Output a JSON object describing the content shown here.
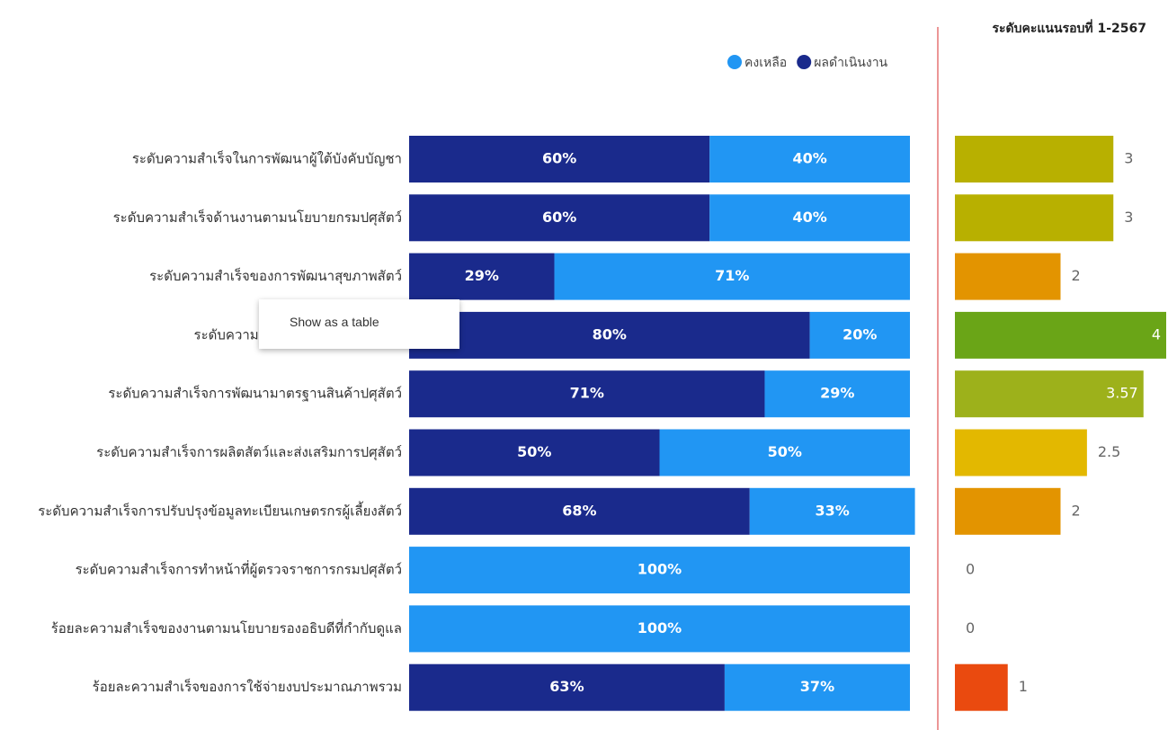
{
  "chart_data": [
    {
      "type": "stacked-bar-horizontal",
      "categories": [
        "ระดับความสำเร็จในการพัฒนาผู้ใต้บังคับบัญชา",
        "ระดับความสำเร็จด้านงานตามนโยบายกรมปศุสัตว์",
        "ระดับความสำเร็จของการพัฒนาสุขภาพสัตว์",
        "ระดับความสำเร็จการสร้างการรับรู้ค",
        "ระดับความสำเร็จการพัฒนามาตรฐานสินค้าปศุสัตว์",
        "ระดับความสำเร็จการผลิตสัตว์และส่งเสริมการปศุสัตว์",
        "ระดับความสำเร็จการปรับปรุงข้อมูลทะเบียนเกษตรกรผู้เลี้ยงสัตว์",
        "ระดับความสำเร็จการทำหน้าที่ผู้ตรวจราชการกรมปศุสัตว์",
        "ร้อยละความสำเร็จของงานตามนโยบายรองอธิบดีที่กำกับดูแล",
        "ร้อยละความสำเร็จของการใช้จ่ายงบประมาณภาพรวม"
      ],
      "series": [
        {
          "name": "คงเหลือ",
          "color": "#2196f3",
          "values": [
            40,
            40,
            71,
            20,
            29,
            50,
            33,
            100,
            100,
            37
          ],
          "value_labels": [
            "40%",
            "40%",
            "71%",
            "20%",
            "29%",
            "50%",
            "33%",
            "100%",
            "100%",
            "37%"
          ]
        },
        {
          "name": "ผลดำเนินงาน",
          "color": "#1a2a8c",
          "values": [
            60,
            60,
            29,
            80,
            71,
            50,
            68,
            0,
            0,
            63
          ],
          "value_labels": [
            "60%",
            "60%",
            "29%",
            "80%",
            "71%",
            "50%",
            "68%",
            null,
            null,
            "63%"
          ]
        }
      ],
      "xlim": [
        0,
        100
      ]
    },
    {
      "type": "bar-horizontal",
      "title": "ระดับคะแนนรอบที่ 1-2567",
      "values": [
        3,
        3,
        2,
        4,
        3.57,
        2.5,
        2,
        0,
        0,
        1
      ],
      "colors": [
        "#b8b000",
        "#b8b000",
        "#e39400",
        "#6aa517",
        "#9db11b",
        "#e3b800",
        "#e39400",
        "#e39400",
        "#e39400",
        "#ea4a0f"
      ],
      "xlim": [
        0,
        4
      ]
    }
  ],
  "context_menu": "Show as a table"
}
